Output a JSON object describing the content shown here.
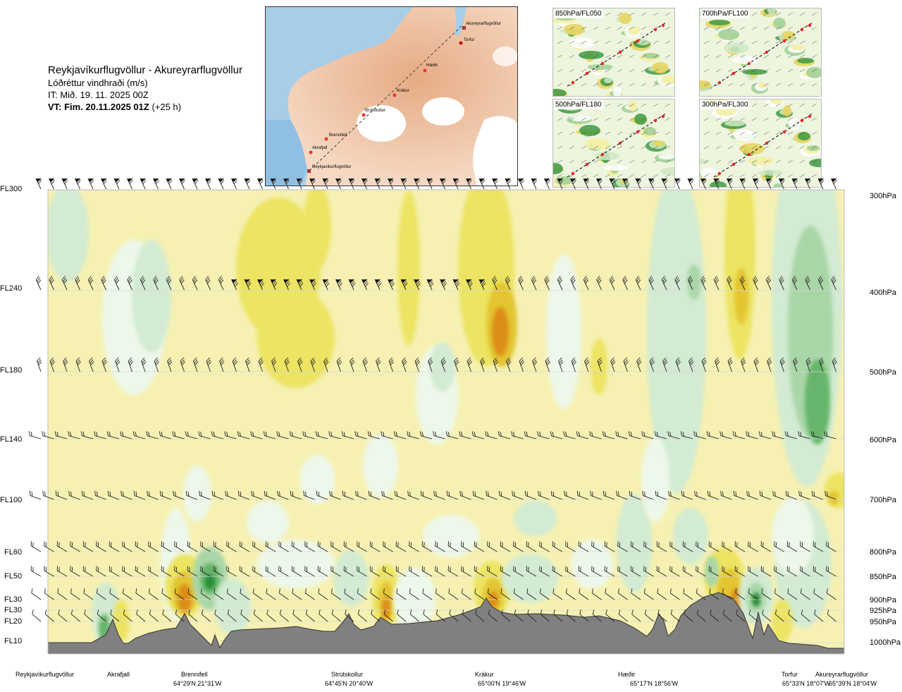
{
  "header": {
    "route": "Reykjavíkurflugvöllur - Akureyrarflugvöllur",
    "parameter": "Lóðréttur vindhraði (m/s)",
    "issue_time": "IT: Mið. 19. 11. 2025 00Z",
    "valid_time_bold": "VT: Fim. 20.11.2025 01Z",
    "valid_time_offset": "(+25 h)"
  },
  "route_map": {
    "waypoints": [
      "Akureyrarflugvöllur",
      "Torfur",
      "Hæðir",
      "Krákur",
      "Strútskollur",
      "Brennifell",
      "Akrafjall",
      "Reykjavíkurflugvöllur"
    ]
  },
  "level_maps": [
    {
      "label": "850hPa/FL050"
    },
    {
      "label": "700hPa/FL100"
    },
    {
      "label": "500hPa/FL180"
    },
    {
      "label": "300hPa/FL300"
    }
  ],
  "flight_levels": [
    "FL300",
    "FL240",
    "FL180",
    "FL140",
    "FL100",
    "FL60",
    "FL50",
    "FL30",
    "FL30",
    "FL20",
    "FL10"
  ],
  "pressure_levels": [
    "300hPa",
    "400hPa",
    "500hPa",
    "600hPa",
    "700hPa",
    "800hPa",
    "850hPa",
    "900hPa",
    "925hPa",
    "950hPa",
    "1000hPa"
  ],
  "locations": [
    {
      "name": "Reykjavíkurflugvöllur",
      "coord": ""
    },
    {
      "name": "Akrafjall",
      "coord": ""
    },
    {
      "name": "Brennifell",
      "coord": "64°29'N 21°31'W"
    },
    {
      "name": "Strútskollur",
      "coord": "64°45'N 20°40'W"
    },
    {
      "name": "Krákur",
      "coord": "65°00'N 19°46'W"
    },
    {
      "name": "Hæðir",
      "coord": "65°17'N 18°56'W"
    },
    {
      "name": "Torfur",
      "coord": "65°33'N 18°07'W"
    },
    {
      "name": "Akureyrarflugvöllur",
      "coord": "65°39'N 18°04'W"
    }
  ],
  "colors": {
    "sink_light": "#f6f1b2",
    "sink_mid": "#ece462",
    "sink_strong": "#e3c531",
    "sink_orange": "#dc8d18",
    "lift_pale": "#eef8ea",
    "lift_light": "#d2ebd2",
    "lift_mid": "#a9d6a7",
    "lift_strong": "#66b56a",
    "lift_dark": "#258c34",
    "terrain": "#808080"
  }
}
